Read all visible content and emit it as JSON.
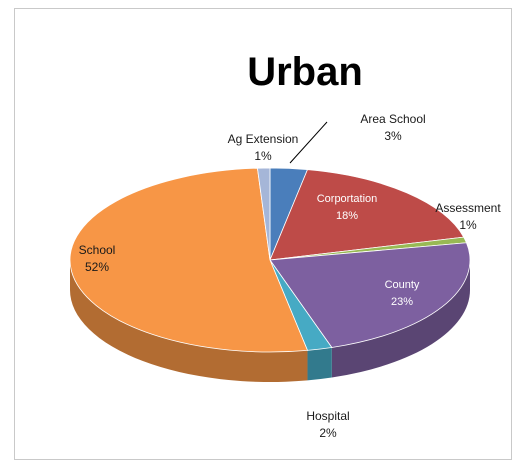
{
  "chart_data": {
    "type": "pie",
    "title": "Urban",
    "slices": [
      {
        "name": "Area School",
        "value": 3,
        "label": "3%",
        "color": "#4a7ebb"
      },
      {
        "name": "Corportation",
        "value": 18,
        "label": "18%",
        "color": "#be4b48"
      },
      {
        "name": "Assessment",
        "value": 1,
        "label": "1%",
        "color": "#98b954"
      },
      {
        "name": "County",
        "value": 23,
        "label": "23%",
        "color": "#7d60a0"
      },
      {
        "name": "Hospital",
        "value": 2,
        "label": "2%",
        "color": "#46aac4"
      },
      {
        "name": "School",
        "value": 52,
        "label": "52%",
        "color": "#f79646"
      },
      {
        "name": "Ag Extension",
        "value": 1,
        "label": "1%",
        "color": "#a5b6d8"
      }
    ],
    "legend": "none",
    "style": "3d-pie"
  }
}
